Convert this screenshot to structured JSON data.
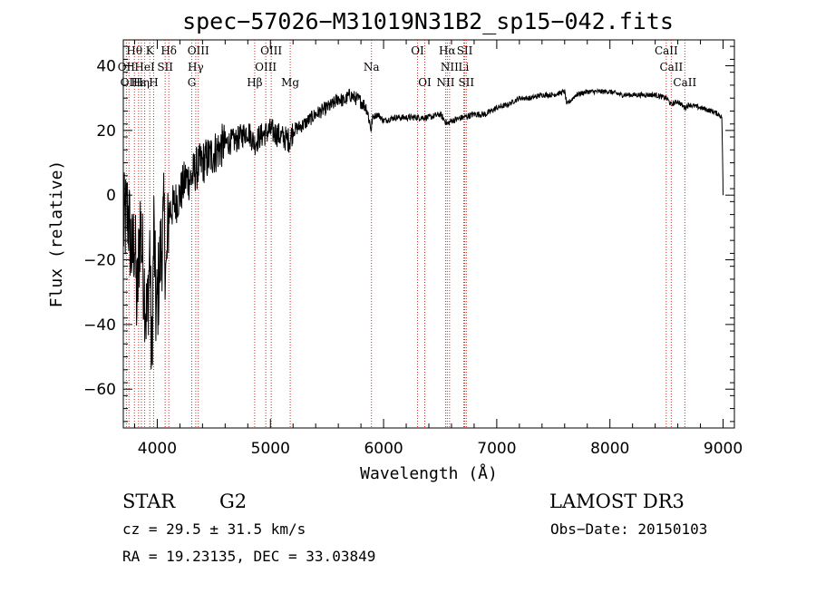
{
  "chart_data": {
    "type": "line",
    "title": "spec−57026−M31019N31B2_sp15−042.fits",
    "xlabel": "Wavelength (Å)",
    "ylabel": "Flux (relative)",
    "xlim": [
      3700,
      9100
    ],
    "ylim": [
      -72,
      48
    ],
    "x_ticks": [
      4000,
      5000,
      6000,
      7000,
      8000,
      9000
    ],
    "y_ticks": [
      -60,
      -40,
      -20,
      0,
      20,
      40
    ],
    "x_tick_labels": [
      "4000",
      "5000",
      "6000",
      "7000",
      "8000",
      "9000"
    ],
    "y_tick_labels": [
      "−60",
      "−40",
      "−20",
      "0",
      "20",
      "40"
    ],
    "grid": false,
    "series": [
      {
        "name": "spectrum",
        "x": [
          3700,
          3740,
          3780,
          3800,
          3820,
          3850,
          3880,
          3910,
          3935,
          3950,
          3970,
          3990,
          4030,
          4060,
          4080,
          4100,
          4150,
          4200,
          4250,
          4300,
          4340,
          4400,
          4500,
          4600,
          4700,
          4800,
          4860,
          4900,
          5000,
          5100,
          5170,
          5200,
          5300,
          5400,
          5500,
          5550,
          5600,
          5650,
          5700,
          5750,
          5800,
          5850,
          5893,
          5900,
          5950,
          6000,
          6100,
          6200,
          6300,
          6400,
          6500,
          6563,
          6600,
          6700,
          6800,
          6900,
          7000,
          7100,
          7200,
          7300,
          7400,
          7500,
          7600,
          7620,
          7700,
          7800,
          7900,
          8000,
          8100,
          8200,
          8300,
          8400,
          8500,
          8542,
          8600,
          8662,
          8700,
          8800,
          8900,
          8960,
          8990,
          9000
        ],
        "y": [
          -10,
          -5,
          -20,
          -12,
          -35,
          -8,
          -25,
          -40,
          -15,
          -55,
          -10,
          -38,
          -18,
          -8,
          -27,
          -5,
          -3,
          0,
          5,
          5,
          8,
          10,
          13,
          16,
          17,
          20,
          16,
          18,
          20,
          18,
          17,
          20,
          22,
          25,
          27,
          28,
          30,
          29,
          31,
          30,
          29,
          27,
          20,
          24,
          25,
          23,
          24,
          24,
          24,
          24,
          25,
          22,
          23,
          24,
          25,
          25,
          27,
          28,
          30,
          30,
          31,
          31,
          32,
          28,
          31,
          32,
          32,
          32,
          31,
          31,
          31,
          31,
          30,
          28,
          29,
          27,
          28,
          27,
          26,
          25,
          24,
          0
        ]
      }
    ],
    "emission_lines": [
      {
        "label": "Hθ",
        "x": 3798,
        "row": 0
      },
      {
        "label": "K",
        "x": 3934,
        "row": 0
      },
      {
        "label": "Hδ",
        "x": 4102,
        "row": 0
      },
      {
        "label": "OIII",
        "x": 4363,
        "row": 0
      },
      {
        "label": "OIII",
        "x": 5007,
        "row": 0
      },
      {
        "label": "OI",
        "x": 6300,
        "row": 0
      },
      {
        "label": "Hα",
        "x": 6563,
        "row": 0
      },
      {
        "label": "SII",
        "x": 6717,
        "row": 0
      },
      {
        "label": "CaII",
        "x": 8498,
        "row": 0
      },
      {
        "label": "OII",
        "x": 3727,
        "row": 1
      },
      {
        "label": "HeI",
        "x": 3889,
        "row": 1
      },
      {
        "label": "SII",
        "x": 4070,
        "row": 1
      },
      {
        "label": "Hγ",
        "x": 4340,
        "row": 1
      },
      {
        "label": "OIII",
        "x": 4959,
        "row": 1
      },
      {
        "label": "Na",
        "x": 5893,
        "row": 1
      },
      {
        "label": "NII",
        "x": 6583,
        "row": 1
      },
      {
        "label": "Li",
        "x": 6708,
        "row": 1
      },
      {
        "label": "CaII",
        "x": 8542,
        "row": 1
      },
      {
        "label": "OII",
        "x": 3750,
        "row": 2
      },
      {
        "label": "Hε",
        "x": 3835,
        "row": 2
      },
      {
        "label": "Hη",
        "x": 3860,
        "row": 2
      },
      {
        "label": "H",
        "x": 3968,
        "row": 2
      },
      {
        "label": "G",
        "x": 4305,
        "row": 2
      },
      {
        "label": "Hβ",
        "x": 4861,
        "row": 2
      },
      {
        "label": "Mg",
        "x": 5175,
        "row": 2
      },
      {
        "label": "OI",
        "x": 6364,
        "row": 2
      },
      {
        "label": "NII",
        "x": 6548,
        "row": 2
      },
      {
        "label": "SII",
        "x": 6731,
        "row": 2
      },
      {
        "label": "CaII",
        "x": 8662,
        "row": 2
      }
    ]
  },
  "info": {
    "class": "STAR",
    "subclass": "G2",
    "survey": "LAMOST DR3",
    "cz": "cz = 29.5 ± 31.5 km/s",
    "obs_date": "Obs−Date: 20150103",
    "radec": "RA =  19.23135, DEC =  33.03849"
  },
  "colors": {
    "line": "#000000",
    "marker": "#cc2a2a"
  }
}
